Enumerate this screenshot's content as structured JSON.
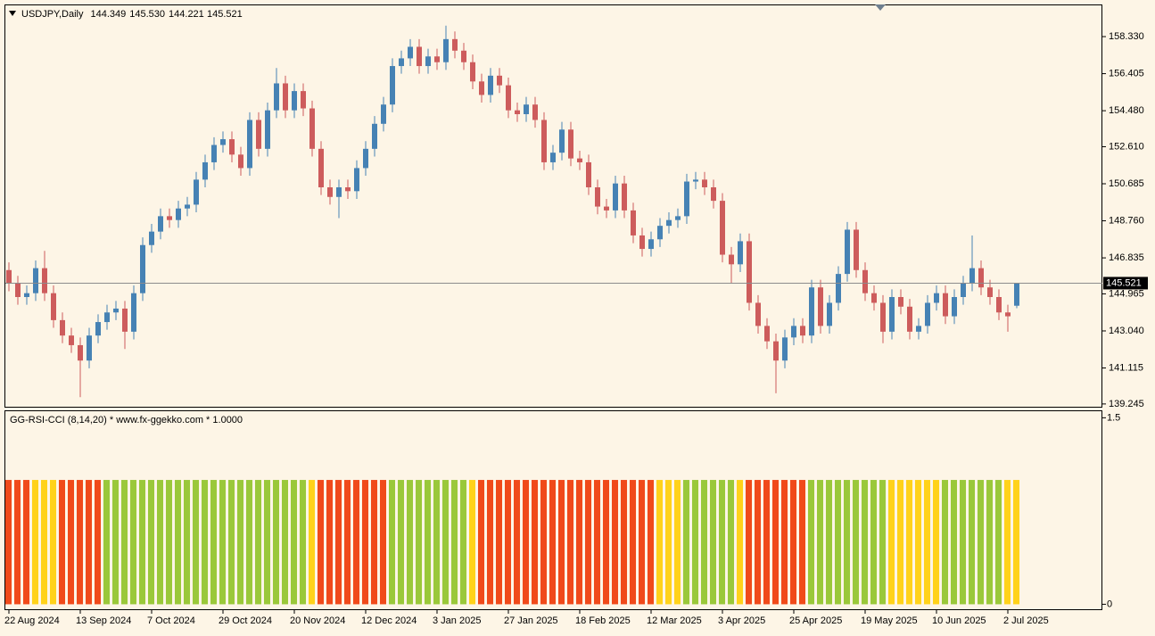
{
  "chart_data": [
    {
      "type": "candlestick",
      "title": "USDJPY,Daily",
      "ohlc_labels": [
        "144.349",
        "145.530",
        "144.221",
        "145.521"
      ],
      "up_color": "#4682b4",
      "down_color": "#cd5c5c",
      "price_line": true,
      "ylim": [
        139.1,
        160.0
      ],
      "yticks": [
        {
          "value": 158.33,
          "label": "158.330"
        },
        156.405,
        {
          "value": 154.48,
          "label": "154.480"
        },
        {
          "value": 152.61,
          "label": "152.610"
        },
        150.685,
        {
          "value": 148.76,
          "label": "148.760"
        },
        146.835,
        144.965,
        {
          "value": 143.04,
          "label": "143.040"
        },
        141.115,
        139.245
      ],
      "categories": [
        "22 Aug 2024",
        null,
        null,
        null,
        null,
        null,
        null,
        null,
        "13 Sep 2024",
        null,
        null,
        null,
        null,
        null,
        null,
        null,
        "7 Oct 2024",
        null,
        null,
        null,
        null,
        null,
        null,
        null,
        "29 Oct 2024",
        null,
        null,
        null,
        null,
        null,
        null,
        null,
        "20 Nov 2024",
        null,
        null,
        null,
        null,
        null,
        null,
        null,
        "12 Dec 2024",
        null,
        null,
        null,
        null,
        null,
        null,
        null,
        "3 Jan 2025",
        null,
        null,
        null,
        null,
        null,
        null,
        null,
        "27 Jan 2025",
        null,
        null,
        null,
        null,
        null,
        null,
        null,
        "18 Feb 2025",
        null,
        null,
        null,
        null,
        null,
        null,
        null,
        "12 Mar 2025",
        null,
        null,
        null,
        null,
        null,
        null,
        null,
        "3 Apr 2025",
        null,
        null,
        null,
        null,
        null,
        null,
        null,
        "25 Apr 2025",
        null,
        null,
        null,
        null,
        null,
        null,
        null,
        "19 May 2025",
        null,
        null,
        null,
        null,
        null,
        null,
        null,
        "10 Jun 2025",
        null,
        null,
        null,
        null,
        null,
        null,
        null,
        "2 Jul 2025",
        null
      ],
      "open": [
        146.2,
        145.5,
        144.8,
        145.0,
        146.3,
        145.0,
        143.6,
        142.8,
        142.3,
        141.5,
        142.8,
        143.5,
        144.0,
        144.2,
        143.0,
        145.0,
        147.5,
        148.2,
        149.0,
        148.8,
        149.4,
        149.6,
        150.9,
        151.8,
        152.7,
        153.0,
        152.2,
        151.5,
        154.0,
        152.5,
        154.5,
        155.9,
        154.5,
        155.5,
        154.6,
        152.5,
        150.5,
        150.0,
        150.5,
        150.3,
        151.5,
        152.5,
        153.8,
        154.8,
        156.8,
        157.2,
        157.8,
        156.8,
        157.3,
        157.0,
        158.2,
        157.6,
        157.0,
        156.0,
        155.3,
        156.3,
        155.8,
        154.5,
        154.3,
        154.8,
        154.0,
        151.8,
        152.3,
        153.5,
        152.0,
        151.8,
        150.5,
        149.5,
        149.3,
        150.7,
        149.3,
        148.0,
        147.3,
        147.8,
        148.5,
        148.8,
        149.0,
        150.8,
        150.9,
        150.5,
        149.8,
        147.0,
        146.5,
        147.7,
        144.5,
        143.3,
        142.5,
        141.5,
        142.7,
        143.3,
        142.8,
        145.3,
        143.3,
        144.5,
        146.0,
        148.3,
        146.2,
        145.0,
        144.5,
        143.0,
        144.8,
        144.3,
        143.0,
        143.3,
        144.5,
        145.0,
        143.8,
        144.8,
        145.5,
        146.3,
        145.3,
        144.8,
        144.0,
        144.349
      ],
      "high": [
        146.6,
        145.9,
        145.4,
        146.7,
        147.2,
        145.4,
        144.0,
        143.2,
        142.7,
        143.2,
        143.9,
        144.4,
        144.6,
        144.6,
        145.4,
        147.9,
        148.6,
        149.4,
        149.4,
        149.8,
        150.0,
        151.3,
        152.2,
        153.1,
        153.4,
        153.4,
        152.6,
        154.4,
        154.4,
        154.9,
        156.7,
        156.3,
        155.9,
        155.9,
        155.0,
        152.9,
        150.9,
        150.9,
        150.9,
        151.9,
        152.9,
        154.2,
        155.2,
        157.2,
        157.6,
        158.2,
        158.2,
        157.7,
        157.7,
        158.9,
        158.6,
        158.0,
        157.4,
        156.4,
        156.7,
        156.7,
        156.2,
        154.9,
        155.2,
        155.2,
        154.4,
        152.7,
        153.9,
        153.9,
        152.4,
        152.2,
        150.9,
        149.9,
        151.1,
        151.1,
        149.7,
        148.4,
        148.2,
        148.9,
        149.2,
        149.4,
        151.2,
        151.3,
        151.3,
        150.9,
        150.2,
        147.4,
        148.1,
        148.1,
        144.9,
        143.7,
        142.9,
        143.1,
        143.7,
        143.7,
        145.7,
        145.7,
        144.9,
        146.4,
        148.7,
        148.7,
        146.6,
        145.4,
        144.9,
        145.2,
        145.2,
        144.7,
        143.7,
        144.9,
        145.4,
        145.4,
        145.2,
        145.9,
        148.0,
        146.7,
        145.7,
        145.2,
        144.4,
        145.53
      ],
      "low": [
        145.1,
        144.4,
        144.4,
        144.6,
        144.6,
        143.2,
        142.4,
        141.9,
        139.6,
        141.1,
        142.4,
        143.1,
        143.6,
        142.1,
        142.6,
        144.6,
        147.1,
        147.8,
        148.4,
        148.4,
        149.0,
        149.2,
        150.5,
        151.4,
        152.3,
        151.8,
        151.1,
        151.1,
        152.1,
        152.1,
        154.1,
        154.1,
        154.1,
        154.2,
        152.1,
        150.1,
        149.6,
        148.9,
        149.9,
        149.9,
        151.1,
        152.1,
        153.4,
        154.4,
        156.4,
        156.8,
        156.4,
        156.4,
        156.6,
        156.6,
        157.2,
        156.6,
        155.6,
        154.9,
        154.9,
        155.4,
        154.1,
        153.9,
        153.9,
        153.6,
        151.4,
        151.4,
        151.9,
        151.6,
        151.4,
        150.1,
        149.1,
        148.9,
        148.9,
        148.9,
        147.6,
        146.9,
        146.9,
        147.4,
        148.1,
        148.4,
        148.6,
        150.4,
        150.1,
        149.4,
        146.6,
        145.5,
        146.1,
        144.1,
        142.9,
        142.1,
        139.8,
        141.1,
        142.3,
        142.4,
        142.4,
        142.9,
        142.9,
        144.1,
        145.6,
        145.8,
        144.6,
        144.1,
        142.4,
        142.6,
        143.9,
        142.6,
        142.6,
        142.9,
        144.1,
        143.4,
        143.4,
        144.4,
        145.1,
        144.9,
        144.4,
        143.6,
        143.0,
        144.221
      ],
      "close": [
        145.5,
        144.8,
        145.0,
        146.3,
        145.0,
        143.6,
        142.8,
        142.3,
        141.5,
        142.8,
        143.5,
        144.0,
        144.2,
        143.0,
        145.0,
        147.5,
        148.2,
        149.0,
        148.8,
        149.4,
        149.6,
        150.9,
        151.8,
        152.7,
        153.0,
        152.2,
        151.5,
        154.0,
        152.5,
        154.5,
        155.9,
        154.5,
        155.5,
        154.6,
        152.5,
        150.5,
        150.0,
        150.5,
        150.3,
        151.5,
        152.5,
        153.8,
        154.8,
        156.8,
        157.2,
        157.8,
        156.8,
        157.3,
        157.0,
        158.2,
        157.6,
        157.0,
        156.0,
        155.3,
        156.3,
        155.8,
        154.5,
        154.3,
        154.8,
        154.0,
        151.8,
        152.3,
        153.5,
        152.0,
        151.8,
        150.5,
        149.5,
        149.3,
        150.7,
        149.3,
        148.0,
        147.3,
        147.8,
        148.5,
        148.8,
        149.0,
        150.8,
        150.9,
        150.5,
        149.8,
        147.0,
        146.5,
        147.7,
        144.5,
        143.3,
        142.5,
        141.5,
        142.7,
        143.3,
        142.8,
        145.3,
        143.3,
        144.5,
        146.0,
        148.3,
        146.2,
        145.0,
        144.5,
        143.0,
        144.8,
        144.3,
        143.0,
        143.3,
        144.5,
        145.0,
        143.8,
        144.8,
        145.5,
        146.3,
        145.3,
        144.8,
        144.0,
        143.8,
        145.521
      ]
    },
    {
      "type": "bar",
      "title": "GG-RSI-CCI (8,14,20) * www.fx-ggekko.com * 1.0000",
      "ylim": [
        -0.04,
        1.56
      ],
      "yticks": [
        1.5,
        0
      ],
      "values": [
        1,
        1,
        1,
        1,
        1,
        1,
        1,
        1,
        1,
        1,
        1,
        1,
        1,
        1,
        1,
        1,
        1,
        1,
        1,
        1,
        1,
        1,
        1,
        1,
        1,
        1,
        1,
        1,
        1,
        1,
        1,
        1,
        1,
        1,
        1,
        1,
        1,
        1,
        1,
        1,
        1,
        1,
        1,
        1,
        1,
        1,
        1,
        1,
        1,
        1,
        1,
        1,
        1,
        1,
        1,
        1,
        1,
        1,
        1,
        1,
        1,
        1,
        1,
        1,
        1,
        1,
        1,
        1,
        1,
        1,
        1,
        1,
        1,
        1,
        1,
        1,
        1,
        1,
        1,
        1,
        1,
        1,
        1,
        1,
        1,
        1,
        1,
        1,
        1,
        1,
        1,
        1,
        1,
        1,
        1,
        1,
        1,
        1,
        1,
        1,
        1,
        1,
        1,
        1,
        1,
        1,
        1,
        1,
        1,
        1,
        1,
        1,
        1,
        1
      ],
      "colors": [
        "#f04a1a",
        "#f04a1a",
        "#f04a1a",
        "#ffd21a",
        "#ffd21a",
        "#ffd21a",
        "#f04a1a",
        "#f04a1a",
        "#f04a1a",
        "#f04a1a",
        "#f04a1a",
        "#9ac83a",
        "#9ac83a",
        "#9ac83a",
        "#9ac83a",
        "#9ac83a",
        "#9ac83a",
        "#9ac83a",
        "#9ac83a",
        "#9ac83a",
        "#9ac83a",
        "#9ac83a",
        "#9ac83a",
        "#9ac83a",
        "#9ac83a",
        "#9ac83a",
        "#9ac83a",
        "#9ac83a",
        "#9ac83a",
        "#9ac83a",
        "#9ac83a",
        "#9ac83a",
        "#9ac83a",
        "#9ac83a",
        "#ffd21a",
        "#f04a1a",
        "#f04a1a",
        "#f04a1a",
        "#f04a1a",
        "#f04a1a",
        "#f04a1a",
        "#f04a1a",
        "#f04a1a",
        "#9ac83a",
        "#9ac83a",
        "#9ac83a",
        "#9ac83a",
        "#9ac83a",
        "#9ac83a",
        "#9ac83a",
        "#9ac83a",
        "#9ac83a",
        "#ffd21a",
        "#f04a1a",
        "#f04a1a",
        "#f04a1a",
        "#f04a1a",
        "#f04a1a",
        "#f04a1a",
        "#f04a1a",
        "#f04a1a",
        "#f04a1a",
        "#f04a1a",
        "#f04a1a",
        "#f04a1a",
        "#f04a1a",
        "#f04a1a",
        "#f04a1a",
        "#f04a1a",
        "#f04a1a",
        "#f04a1a",
        "#f04a1a",
        "#f04a1a",
        "#ffd21a",
        "#ffd21a",
        "#ffd21a",
        "#9ac83a",
        "#9ac83a",
        "#9ac83a",
        "#9ac83a",
        "#9ac83a",
        "#9ac83a",
        "#ffd21a",
        "#f04a1a",
        "#f04a1a",
        "#f04a1a",
        "#f04a1a",
        "#f04a1a",
        "#f04a1a",
        "#f04a1a",
        "#9ac83a",
        "#9ac83a",
        "#9ac83a",
        "#9ac83a",
        "#9ac83a",
        "#9ac83a",
        "#9ac83a",
        "#9ac83a",
        "#9ac83a",
        "#ffd21a",
        "#ffd21a",
        "#ffd21a",
        "#ffd21a",
        "#ffd21a",
        "#ffd21a",
        "#9ac83a",
        "#9ac83a",
        "#9ac83a",
        "#9ac83a",
        "#9ac83a",
        "#9ac83a",
        "#9ac83a",
        "#ffd21a",
        "#ffd21a"
      ]
    }
  ]
}
